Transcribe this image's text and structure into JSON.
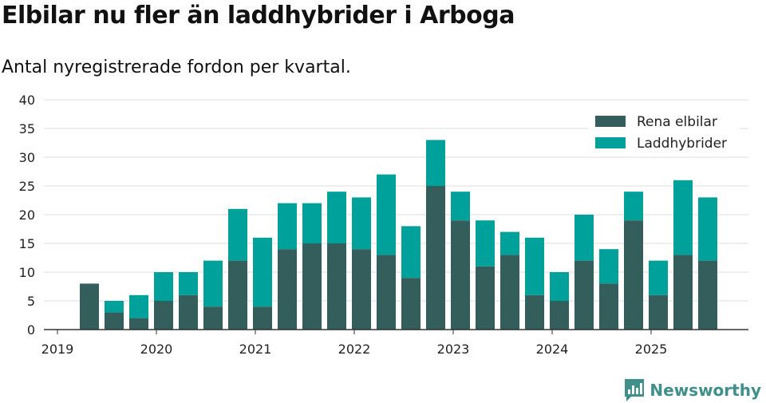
{
  "chart_data": {
    "type": "bar",
    "stacked": true,
    "title": "Elbilar nu fler än laddhybrider i Arboga",
    "subtitle": "Antal nyregistrerade fordon per kvartal.",
    "xlabel": "",
    "ylabel": "",
    "ylim": [
      0,
      40
    ],
    "yticks": [
      0,
      5,
      10,
      15,
      20,
      25,
      30,
      35,
      40
    ],
    "xticks": [
      "2019",
      "2020",
      "2021",
      "2022",
      "2023",
      "2024",
      "2025"
    ],
    "grid": true,
    "legend_position": "top-right",
    "categories": [
      "2019 Q2",
      "2019 Q3",
      "2019 Q4",
      "2020 Q1",
      "2020 Q2",
      "2020 Q3",
      "2020 Q4",
      "2021 Q1",
      "2021 Q2",
      "2021 Q3",
      "2021 Q4",
      "2022 Q1",
      "2022 Q2",
      "2022 Q3",
      "2022 Q4",
      "2023 Q1",
      "2023 Q2",
      "2023 Q3",
      "2023 Q4",
      "2024 Q1",
      "2024 Q2",
      "2024 Q3",
      "2024 Q4",
      "2025 Q1",
      "2025 Q2",
      "2025 Q3"
    ],
    "series": [
      {
        "name": "Rena elbilar",
        "color": "#335e5b",
        "values": [
          8,
          3,
          2,
          5,
          6,
          4,
          12,
          4,
          14,
          15,
          15,
          14,
          13,
          9,
          25,
          19,
          11,
          13,
          6,
          5,
          12,
          8,
          19,
          6,
          13,
          12
        ]
      },
      {
        "name": "Laddhybrider",
        "color": "#00a19a",
        "values": [
          0,
          2,
          4,
          5,
          4,
          8,
          9,
          12,
          8,
          7,
          9,
          9,
          14,
          9,
          8,
          5,
          8,
          4,
          10,
          5,
          8,
          6,
          5,
          6,
          13,
          11
        ]
      }
    ]
  },
  "brand": {
    "name": "Newsworthy",
    "icon": "newsworthy-logo-icon",
    "color": "#3f8f8a"
  }
}
